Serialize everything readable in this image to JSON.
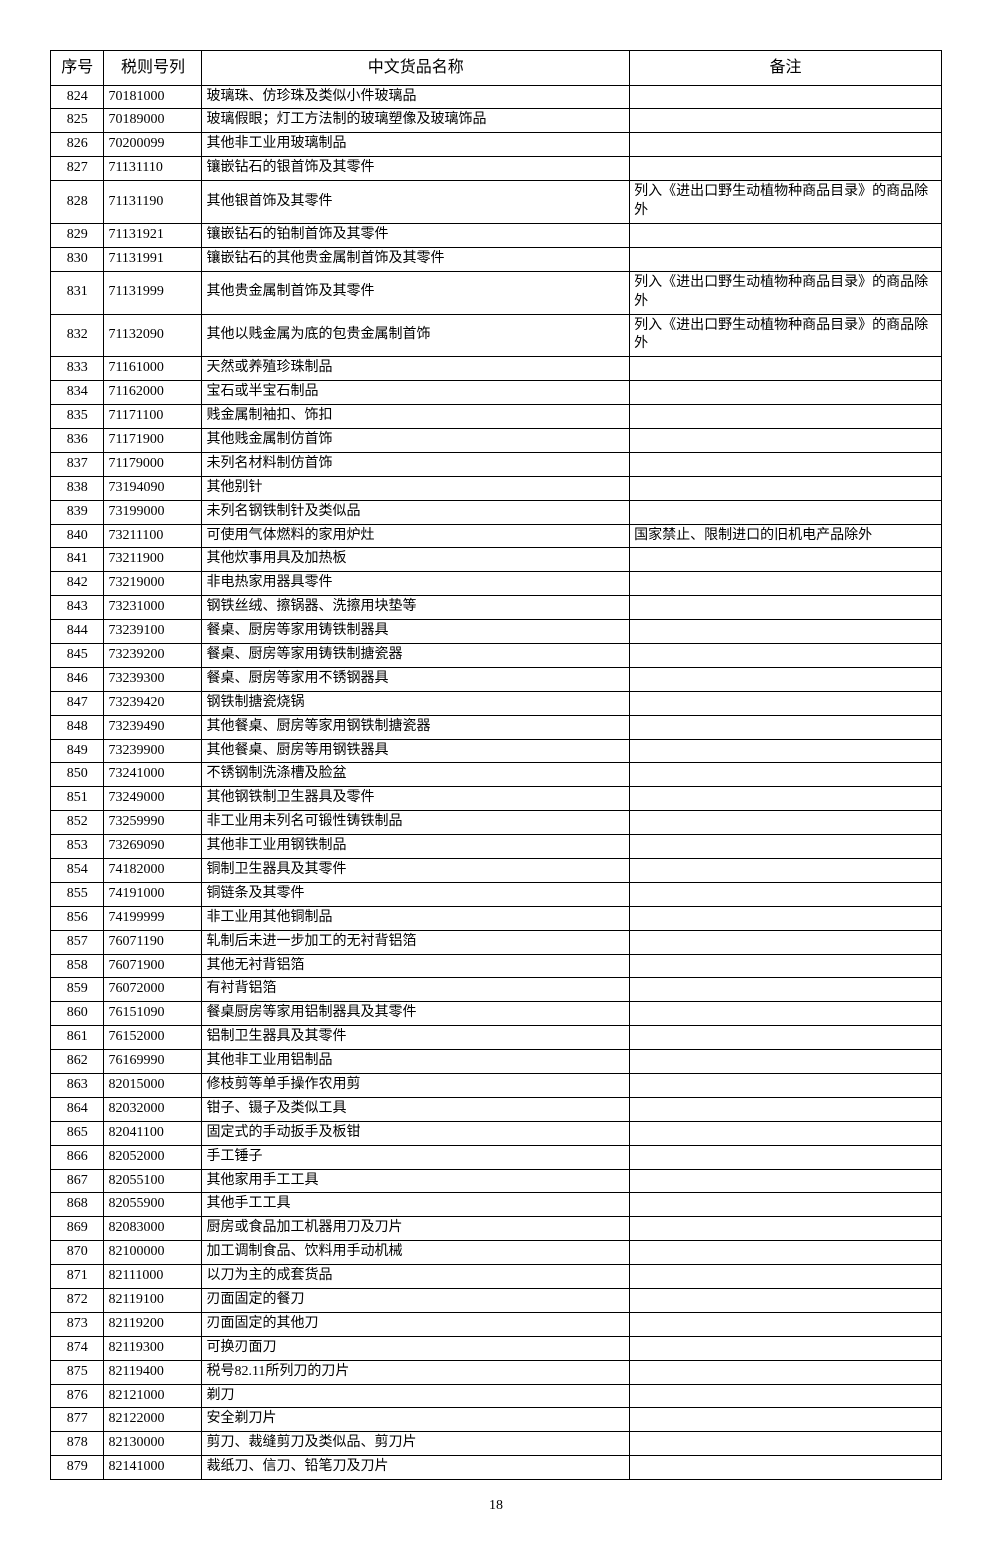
{
  "page_number": "18",
  "table": {
    "columns": {
      "seq": "序号",
      "code": "税则号列",
      "name": "中文货品名称",
      "note": "备注"
    },
    "col_widths_pct": {
      "seq": 6,
      "code": 11,
      "name": 48,
      "note": 35
    },
    "header_fontsize": 16,
    "cell_fontsize": 14,
    "border_color": "#000000",
    "background_color": "#ffffff",
    "rows": [
      {
        "seq": "824",
        "code": "70181000",
        "name": "玻璃珠、仿珍珠及类似小件玻璃品",
        "note": ""
      },
      {
        "seq": "825",
        "code": "70189000",
        "name": "玻璃假眼；灯工方法制的玻璃塑像及玻璃饰品",
        "note": ""
      },
      {
        "seq": "826",
        "code": "70200099",
        "name": "其他非工业用玻璃制品",
        "note": ""
      },
      {
        "seq": "827",
        "code": "71131110",
        "name": "镶嵌钻石的银首饰及其零件",
        "note": ""
      },
      {
        "seq": "828",
        "code": "71131190",
        "name": "其他银首饰及其零件",
        "note": "列入《进出口野生动植物种商品目录》的商品除外",
        "tall": true
      },
      {
        "seq": "829",
        "code": "71131921",
        "name": "镶嵌钻石的铂制首饰及其零件",
        "note": ""
      },
      {
        "seq": "830",
        "code": "71131991",
        "name": "镶嵌钻石的其他贵金属制首饰及其零件",
        "note": ""
      },
      {
        "seq": "831",
        "code": "71131999",
        "name": "其他贵金属制首饰及其零件",
        "note": "列入《进出口野生动植物种商品目录》的商品除外",
        "tall": true
      },
      {
        "seq": "832",
        "code": "71132090",
        "name": "其他以贱金属为底的包贵金属制首饰",
        "note": "列入《进出口野生动植物种商品目录》的商品除外",
        "tall": true
      },
      {
        "seq": "833",
        "code": "71161000",
        "name": "天然或养殖珍珠制品",
        "note": ""
      },
      {
        "seq": "834",
        "code": "71162000",
        "name": "宝石或半宝石制品",
        "note": ""
      },
      {
        "seq": "835",
        "code": "71171100",
        "name": "贱金属制袖扣、饰扣",
        "note": ""
      },
      {
        "seq": "836",
        "code": "71171900",
        "name": "其他贱金属制仿首饰",
        "note": ""
      },
      {
        "seq": "837",
        "code": "71179000",
        "name": "未列名材料制仿首饰",
        "note": ""
      },
      {
        "seq": "838",
        "code": "73194090",
        "name": "其他别针",
        "note": ""
      },
      {
        "seq": "839",
        "code": "73199000",
        "name": "未列名钢铁制针及类似品",
        "note": ""
      },
      {
        "seq": "840",
        "code": "73211100",
        "name": "可使用气体燃料的家用炉灶",
        "note": "国家禁止、限制进口的旧机电产品除外"
      },
      {
        "seq": "841",
        "code": "73211900",
        "name": "其他炊事用具及加热板",
        "note": ""
      },
      {
        "seq": "842",
        "code": "73219000",
        "name": "非电热家用器具零件",
        "note": ""
      },
      {
        "seq": "843",
        "code": "73231000",
        "name": "钢铁丝绒、擦锅器、洗擦用块垫等",
        "note": ""
      },
      {
        "seq": "844",
        "code": "73239100",
        "name": "餐桌、厨房等家用铸铁制器具",
        "note": ""
      },
      {
        "seq": "845",
        "code": "73239200",
        "name": "餐桌、厨房等家用铸铁制搪瓷器",
        "note": ""
      },
      {
        "seq": "846",
        "code": "73239300",
        "name": "餐桌、厨房等家用不锈钢器具",
        "note": ""
      },
      {
        "seq": "847",
        "code": "73239420",
        "name": "钢铁制搪瓷烧锅",
        "note": ""
      },
      {
        "seq": "848",
        "code": "73239490",
        "name": "其他餐桌、厨房等家用钢铁制搪瓷器",
        "note": ""
      },
      {
        "seq": "849",
        "code": "73239900",
        "name": "其他餐桌、厨房等用钢铁器具",
        "note": ""
      },
      {
        "seq": "850",
        "code": "73241000",
        "name": "不锈钢制洗涤槽及脸盆",
        "note": ""
      },
      {
        "seq": "851",
        "code": "73249000",
        "name": "其他钢铁制卫生器具及零件",
        "note": ""
      },
      {
        "seq": "852",
        "code": "73259990",
        "name": "非工业用未列名可锻性铸铁制品",
        "note": ""
      },
      {
        "seq": "853",
        "code": "73269090",
        "name": "其他非工业用钢铁制品",
        "note": ""
      },
      {
        "seq": "854",
        "code": "74182000",
        "name": "铜制卫生器具及其零件",
        "note": ""
      },
      {
        "seq": "855",
        "code": "74191000",
        "name": "铜链条及其零件",
        "note": ""
      },
      {
        "seq": "856",
        "code": "74199999",
        "name": "非工业用其他铜制品",
        "note": ""
      },
      {
        "seq": "857",
        "code": "76071190",
        "name": "轧制后未进一步加工的无衬背铝箔",
        "note": ""
      },
      {
        "seq": "858",
        "code": "76071900",
        "name": "其他无衬背铝箔",
        "note": ""
      },
      {
        "seq": "859",
        "code": "76072000",
        "name": "有衬背铝箔",
        "note": ""
      },
      {
        "seq": "860",
        "code": "76151090",
        "name": "餐桌厨房等家用铝制器具及其零件",
        "note": ""
      },
      {
        "seq": "861",
        "code": "76152000",
        "name": "铝制卫生器具及其零件",
        "note": ""
      },
      {
        "seq": "862",
        "code": "76169990",
        "name": "其他非工业用铝制品",
        "note": ""
      },
      {
        "seq": "863",
        "code": "82015000",
        "name": "修枝剪等单手操作农用剪",
        "note": ""
      },
      {
        "seq": "864",
        "code": "82032000",
        "name": "钳子、镊子及类似工具",
        "note": ""
      },
      {
        "seq": "865",
        "code": "82041100",
        "name": "固定式的手动扳手及板钳",
        "note": ""
      },
      {
        "seq": "866",
        "code": "82052000",
        "name": "手工锤子",
        "note": ""
      },
      {
        "seq": "867",
        "code": "82055100",
        "name": "其他家用手工工具",
        "note": ""
      },
      {
        "seq": "868",
        "code": "82055900",
        "name": "其他手工工具",
        "note": ""
      },
      {
        "seq": "869",
        "code": "82083000",
        "name": "厨房或食品加工机器用刀及刀片",
        "note": ""
      },
      {
        "seq": "870",
        "code": "82100000",
        "name": "加工调制食品、饮料用手动机械",
        "note": ""
      },
      {
        "seq": "871",
        "code": "82111000",
        "name": "以刀为主的成套货品",
        "note": ""
      },
      {
        "seq": "872",
        "code": "82119100",
        "name": "刃面固定的餐刀",
        "note": ""
      },
      {
        "seq": "873",
        "code": "82119200",
        "name": "刃面固定的其他刀",
        "note": ""
      },
      {
        "seq": "874",
        "code": "82119300",
        "name": "可换刃面刀",
        "note": ""
      },
      {
        "seq": "875",
        "code": "82119400",
        "name": "税号82.11所列刀的刀片",
        "note": ""
      },
      {
        "seq": "876",
        "code": "82121000",
        "name": "剃刀",
        "note": ""
      },
      {
        "seq": "877",
        "code": "82122000",
        "name": "安全剃刀片",
        "note": ""
      },
      {
        "seq": "878",
        "code": "82130000",
        "name": "剪刀、裁缝剪刀及类似品、剪刀片",
        "note": ""
      },
      {
        "seq": "879",
        "code": "82141000",
        "name": "裁纸刀、信刀、铅笔刀及刀片",
        "note": ""
      }
    ]
  }
}
